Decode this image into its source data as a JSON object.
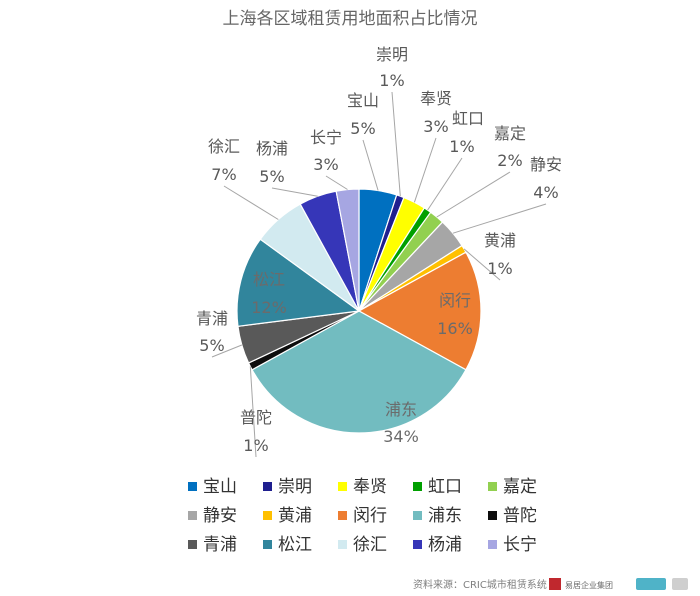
{
  "chart_data": {
    "type": "pie",
    "title": "上海各区域租赁用地面积占比情况",
    "unit": "%",
    "slices": [
      {
        "name": "宝山",
        "value": 5,
        "label": "5%",
        "color": "#0070c0"
      },
      {
        "name": "崇明",
        "value": 1,
        "label": "1%",
        "color": "#1f1f8f"
      },
      {
        "name": "奉贤",
        "value": 3,
        "label": "3%",
        "color": "#ffff00"
      },
      {
        "name": "虹口",
        "value": 1,
        "label": "1%",
        "color": "#00a000"
      },
      {
        "name": "嘉定",
        "value": 2,
        "label": "2%",
        "color": "#92d050"
      },
      {
        "name": "静安",
        "value": 4,
        "label": "4%",
        "color": "#a6a6a6"
      },
      {
        "name": "黄浦",
        "value": 1,
        "label": "1%",
        "color": "#ffc000"
      },
      {
        "name": "闵行",
        "value": 16,
        "label": "16%",
        "color": "#ed7d31"
      },
      {
        "name": "浦东",
        "value": 34,
        "label": "34%",
        "color": "#72bcc0"
      },
      {
        "name": "普陀",
        "value": 1,
        "label": "1%",
        "color": "#0d0d0d"
      },
      {
        "name": "青浦",
        "value": 5,
        "label": "5%",
        "color": "#595959"
      },
      {
        "name": "松江",
        "value": 12,
        "label": "12%",
        "color": "#31859c"
      },
      {
        "name": "徐汇",
        "value": 7,
        "label": "7%",
        "color": "#d2eaf0"
      },
      {
        "name": "杨浦",
        "value": 5,
        "label": "5%",
        "color": "#3636b8"
      },
      {
        "name": "长宁",
        "value": 3,
        "label": "3%",
        "color": "#a6a6e2"
      }
    ],
    "legend": {
      "position": "bottom"
    }
  },
  "footer": {
    "source": "资料来源：CRIC城市租赁系统",
    "logo_text": "易居企业集团"
  }
}
